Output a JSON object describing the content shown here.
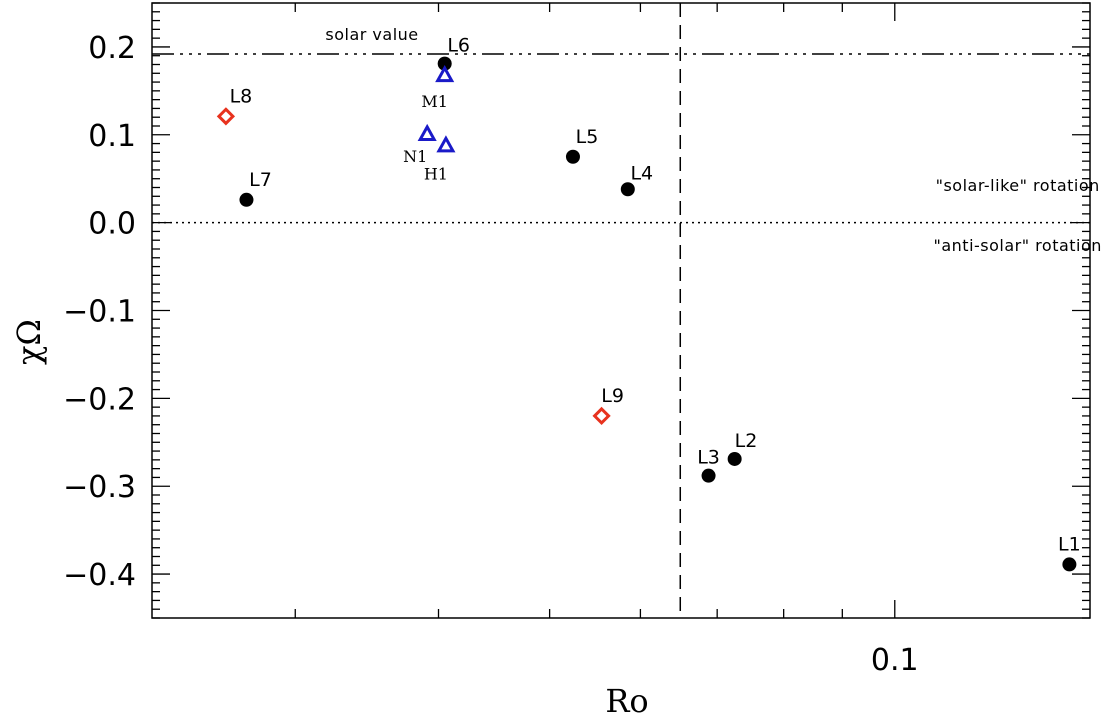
{
  "chart_data": {
    "type": "scatter",
    "xlabel": "Ro",
    "ylabel": "χΩ",
    "xscale": "log",
    "xlim": [
      0.0225,
      0.148
    ],
    "ylim": [
      -0.45,
      0.25
    ],
    "xticks_major": [
      {
        "value": 0.1,
        "label": "0.1"
      }
    ],
    "xticks_minor": [
      0.03,
      0.04,
      0.05,
      0.06,
      0.07,
      0.08,
      0.09
    ],
    "yticks": [
      {
        "value": 0.2,
        "label": "0.2"
      },
      {
        "value": 0.1,
        "label": "0.1"
      },
      {
        "value": 0.0,
        "label": "0.0"
      },
      {
        "value": -0.1,
        "label": "−0.1"
      },
      {
        "value": -0.2,
        "label": "−0.2"
      },
      {
        "value": -0.3,
        "label": "−0.3"
      },
      {
        "value": -0.4,
        "label": "−0.4"
      }
    ],
    "reference_lines": [
      {
        "kind": "horizontal",
        "value": 0.192,
        "style": "dash-dot-dot-dot",
        "label": "solar value"
      },
      {
        "kind": "horizontal",
        "value": 0.0,
        "style": "dotted",
        "label": ""
      },
      {
        "kind": "vertical",
        "value": 0.065,
        "style": "dashed",
        "label": ""
      }
    ],
    "annotations": [
      {
        "text": "\"solar-like\" rotation",
        "x": 0.128,
        "y": 0.036
      },
      {
        "text": "\"anti-solar\" rotation",
        "x": 0.128,
        "y": -0.032
      }
    ],
    "series": [
      {
        "marker": "filled-circle",
        "color": "#000000",
        "points": [
          {
            "label": "L1",
            "x": 0.142,
            "y": -0.389
          },
          {
            "label": "L2",
            "x": 0.0725,
            "y": -0.269
          },
          {
            "label": "L3",
            "x": 0.0688,
            "y": -0.288
          },
          {
            "label": "L4",
            "x": 0.0585,
            "y": 0.038
          },
          {
            "label": "L5",
            "x": 0.0524,
            "y": 0.075
          },
          {
            "label": "L6",
            "x": 0.0405,
            "y": 0.181
          },
          {
            "label": "L7",
            "x": 0.0272,
            "y": 0.026
          }
        ]
      },
      {
        "marker": "open-diamond",
        "color": "#e8321e",
        "points": [
          {
            "label": "L8",
            "x": 0.0261,
            "y": 0.121
          },
          {
            "label": "L9",
            "x": 0.0555,
            "y": -0.22
          }
        ]
      },
      {
        "marker": "open-triangle",
        "color": "#1a1ac8",
        "points": [
          {
            "label": "M1",
            "x": 0.0405,
            "y": 0.168
          },
          {
            "label": "N1",
            "x": 0.0391,
            "y": 0.101
          },
          {
            "label": "H1",
            "x": 0.0406,
            "y": 0.088
          }
        ]
      }
    ]
  }
}
